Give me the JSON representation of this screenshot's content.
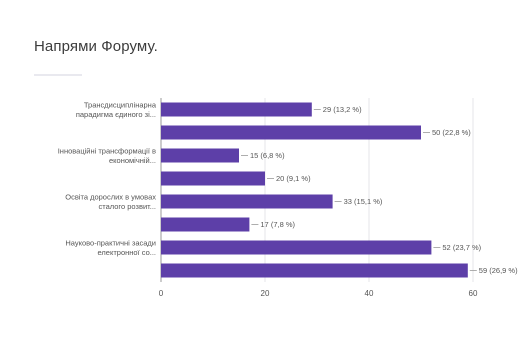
{
  "title": "Напрями Форуму.",
  "colors": {
    "bar": "#5d3fa8",
    "grid": "#e4e4e8",
    "text": "#555555"
  },
  "chart_data": {
    "type": "bar",
    "orientation": "horizontal",
    "categories": [
      [
        "Трансдисциплінарна",
        "парадигма єдиного зі..."
      ],
      [],
      [
        "Інноваційні трансформації в",
        "економічній..."
      ],
      [],
      [
        "Освіта дорослих в умовах",
        "сталого розвит..."
      ],
      [],
      [
        "Науково-практичні засади",
        "електронної со..."
      ],
      []
    ],
    "values": [
      29,
      50,
      15,
      20,
      33,
      17,
      52,
      59
    ],
    "data_labels": [
      "29 (13,2 %)",
      "50 (22,8 %)",
      "15 (6,8 %)",
      "20 (9,1 %)",
      "33 (15,1 %)",
      "17 (7,8 %)",
      "52 (23,7 %)",
      "59 (26,9 %)"
    ],
    "xticks": [
      "0",
      "20",
      "40",
      "60"
    ],
    "xlim": [
      0,
      60
    ],
    "grid": true,
    "legend": "none"
  }
}
